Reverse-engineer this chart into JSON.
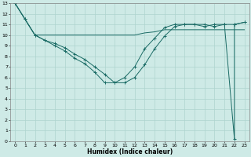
{
  "xlabel": "Humidex (Indice chaleur)",
  "bg_color": "#ceeae6",
  "grid_color": "#aed4ce",
  "line_color": "#1a6b65",
  "xlim": [
    -0.5,
    23.5
  ],
  "ylim": [
    0,
    13
  ],
  "x_ticks": [
    0,
    1,
    2,
    3,
    4,
    5,
    6,
    7,
    8,
    9,
    10,
    11,
    12,
    13,
    14,
    15,
    16,
    17,
    18,
    19,
    20,
    21,
    22,
    23
  ],
  "y_ticks": [
    0,
    1,
    2,
    3,
    4,
    5,
    6,
    7,
    8,
    9,
    10,
    11,
    12,
    13
  ],
  "line1_x": [
    0,
    1,
    2,
    3,
    4,
    5,
    6,
    7,
    8,
    9,
    10,
    11,
    12,
    13,
    14,
    15,
    16,
    17,
    18,
    19,
    20,
    21,
    22,
    23
  ],
  "line1_y": [
    13,
    11.5,
    10,
    9.5,
    9,
    8.5,
    7.8,
    7.3,
    6.5,
    5.5,
    5.5,
    6,
    7,
    8.7,
    9.7,
    10.7,
    11,
    11,
    11,
    10.8,
    11,
    11,
    11,
    11.2
  ],
  "line2_x": [
    0,
    1,
    2,
    3,
    4,
    5,
    6,
    7,
    8,
    9,
    10,
    11,
    12,
    13,
    14,
    15,
    16,
    17,
    18,
    19,
    20,
    21,
    21,
    22,
    22,
    23
  ],
  "line2_y": [
    13,
    11.5,
    10,
    9.5,
    9.2,
    8.8,
    8.2,
    7.7,
    7.0,
    6.3,
    5.5,
    5.5,
    6.0,
    7.2,
    8.7,
    9.9,
    10.8,
    11,
    11,
    11,
    10.8,
    11,
    11,
    0.2,
    11,
    11.2
  ],
  "line3_x": [
    0,
    1,
    2,
    3,
    4,
    5,
    6,
    7,
    8,
    9,
    10,
    11,
    12,
    13,
    14,
    15,
    16,
    17,
    18,
    19,
    20,
    21,
    23
  ],
  "line3_y": [
    13,
    11.5,
    10,
    10,
    10,
    10,
    10,
    10,
    10,
    10,
    10,
    10,
    10,
    10.2,
    10.3,
    10.5,
    10.5,
    10.5,
    10.5,
    10.5,
    10.5,
    10.5,
    10.5
  ]
}
